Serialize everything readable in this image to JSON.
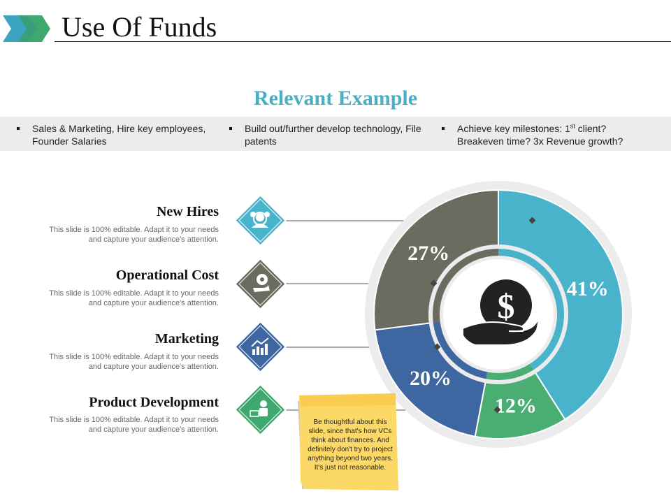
{
  "header": {
    "title": "Use Of Funds",
    "colors": {
      "chevron_blue": "#3ca4c0",
      "chevron_green": "#3ea86f"
    }
  },
  "subtitle": "Relevant Example",
  "band": {
    "items": [
      {
        "lines": [
          "Sales & Marketing, Hire key employees,",
          "Founder Salaries"
        ]
      },
      {
        "lines": [
          "Build out/further develop technology, File",
          "patents"
        ]
      },
      {
        "line1_a": "Achieve key milestones: 1",
        "line1_sup": "st",
        "line1_b": " client?",
        "line2": "Breakeven time? 3x Revenue growth?"
      }
    ]
  },
  "categories": [
    {
      "title": "New Hires",
      "desc": [
        "This slide is 100% editable. Adapt it to your needs",
        "and capture your audience's attention."
      ],
      "icon": "team-icon",
      "color": "#4ab3cc"
    },
    {
      "title": "Operational Cost",
      "desc": [
        "This slide is 100% editable. Adapt it to your needs",
        "and capture your audience's attention."
      ],
      "icon": "gear-hand-icon",
      "color": "#6c6b5f"
    },
    {
      "title": "Marketing",
      "desc": [
        "This slide is 100% editable. Adapt it to your needs",
        "and capture your audience's attention."
      ],
      "icon": "growth-chart-icon",
      "color": "#3e66a0"
    },
    {
      "title": "Product Development",
      "desc": [
        "This slide is 100% editable. Adapt it to your needs",
        "and capture your audience's attention."
      ],
      "icon": "presenter-icon",
      "color": "#3ea86f"
    }
  ],
  "chart_data": {
    "type": "pie",
    "style": "donut",
    "slices": [
      {
        "label": "41%",
        "value": 41,
        "color": "#4ab3cc"
      },
      {
        "label": "12%",
        "value": 12,
        "color": "#4aad72"
      },
      {
        "label": "20%",
        "value": 20,
        "color": "#3e66a0"
      },
      {
        "label": "27%",
        "value": 27,
        "color": "#6c6b5f"
      }
    ],
    "center_icon": "money-hand-icon"
  },
  "note": {
    "text": "Be thoughtful about this slide, since that's how VCs think about finances. And definitely don't try to project anything beyond two years. It's just not reasonable.",
    "color": "#fcd966"
  }
}
